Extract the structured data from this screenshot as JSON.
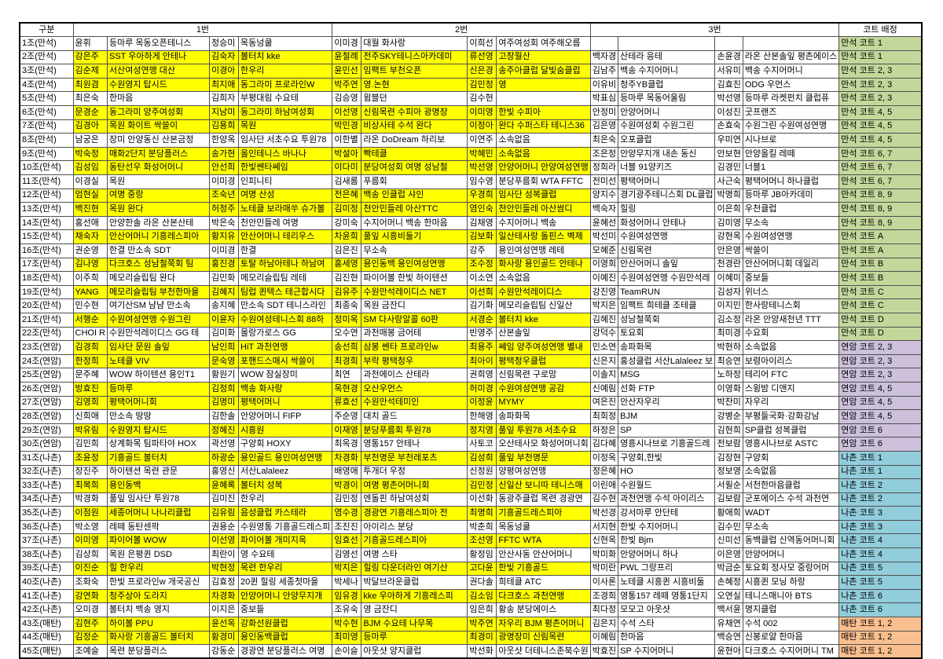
{
  "table": {
    "headers": {
      "group": "구분",
      "round1": "1번",
      "round2": "2번",
      "round3": "3번",
      "court": "코트 배정"
    },
    "colors": {
      "highlight": "#FFFF00",
      "court": {
        "manseok": "#C4D79B",
        "yeonam": "#CCC0DA",
        "nachon": "#92CDDC",
        "maetan": "#FABF8F"
      }
    },
    "rows": [
      {
        "group": "1조(만석)",
        "hl": false,
        "zone": "manseok",
        "court": "만석 코트 1",
        "cells": [
          "윤휘",
          "등마루 목동오픈테니스",
          "정승미",
          "목동넝쿨",
          "이미경",
          "대월 화사랑",
          "이희선",
          "여주여성회 여주해오름",
          "",
          "",
          "",
          ""
        ]
      },
      {
        "group": "2조(만석)",
        "hl": true,
        "zone": "manseok",
        "court": "만석 코트 1",
        "cells": [
          "강은주",
          "SST 우아하게 안테나",
          "김숙자",
          "볼터치 kke",
          "윤철례",
          "전주SKY테니스아카데미",
          "류선영",
          "고창월산",
          "백자경",
          "산테라 응테",
          "손윤경",
          "라온 산본솔잎 평촌에이스"
        ]
      },
      {
        "group": "3조(만석)",
        "hl": true,
        "zone": "manseok",
        "court": "만석 코트 2, 3",
        "cells": [
          "김순제",
          "서산여성연맹 대산",
          "이경아",
          "한우리",
          "윤민선",
          "임팩트 부천오픈",
          "신은경",
          "송주아클럽 달빛숨클럽",
          "김남주",
          "백송 수지어머니",
          "서유미",
          "백송 수지어머니"
        ]
      },
      {
        "group": "4조(만석)",
        "hl": true,
        "zone": "manseok",
        "court": "만석 코트 2, 3",
        "cells": [
          "최원겸",
          "수원영지 탑시드",
          "최지애",
          "동그라미 프로라인W",
          "박주연",
          "영.논현",
          "김민정",
          "영",
          "이유비",
          "청주YB클럽",
          "김효진",
          "ODG 우먼스"
        ]
      },
      {
        "group": "5조(만석)",
        "hl": false,
        "zone": "manseok",
        "court": "만석 코트 2, 3",
        "cells": [
          "최은숙",
          "한마음",
          "김희자",
          "부평대림 수요테",
          "김승영",
          "윔블던",
          "김수현",
          "",
          "박표심",
          "등마루 목동어울림",
          "박선영",
          "등마루 라켓펀치 클럽퓨"
        ]
      },
      {
        "group": "6조(만석)",
        "hl": true,
        "zone": "manseok",
        "court": "만석 코트 4, 5",
        "cells": [
          "문경순",
          "동그라미 양주여성회",
          "지남미",
          "동그라미 하남여성회",
          "이선영",
          "신림목련 수피아 광명장",
          "이미영",
          "한빛 수피아",
          "안정미",
          "안양어머니",
          "이성진",
          "굿프랜즈"
        ]
      },
      {
        "group": "7조(만석)",
        "hl": true,
        "zone": "manseok",
        "court": "만석 코트 4, 5",
        "cells": [
          "김경아",
          "목원 화이트 싹쓸이",
          "김용희",
          "목원",
          "박민경",
          "비상사테 수석 완다",
          "이정아",
          "완다 수퍼스타 테니스36",
          "김은영",
          "수원여성회 수원그린",
          "손효숙",
          "수원그린 수원여성연맹"
        ]
      },
      {
        "group": "8조(만석)",
        "hl": false,
        "zone": "manseok",
        "court": "만석 코트 4, 5",
        "cells": [
          "남궁은",
          "장미 안양동신 산본금정",
          "한양옥",
          "임사단 서초수요 투원78",
          "이한별",
          "라온 DoDream 하리보",
          "이연주",
          "소속없음",
          "최은숙",
          "오포클럽",
          "우미연",
          "시나브로"
        ]
      },
      {
        "group": "9조(만석)",
        "hl": true,
        "zone": "manseok",
        "court": "만석 코트 6, 7",
        "cells": [
          "박숙정",
          "매화2단지 분당플러스",
          "송가현",
          "올인테니스 바나나",
          "박설아",
          "빡테클",
          "박혜민",
          "소속없음",
          "조은정",
          "안양무지개 내손 동신",
          "안보현",
          "안양올킬 레떼"
        ]
      },
      {
        "group": "10조(만석)",
        "hl": true,
        "zone": "manseok",
        "court": "만석 코트 6, 7",
        "cells": [
          "김성임",
          "동탄선우 화성어머니",
          "안선희",
          "한빛쎈타쎄임",
          "이다미",
          "분당여성회 여명 성남철",
          "박선영",
          "안양어머니 안양여성연맹",
          "정희라",
          "너블 91양키즈",
          "김경민",
          "너블1"
        ]
      },
      {
        "group": "11조(만석)",
        "hl": false,
        "zone": "manseok",
        "court": "만석 코트 6, 7",
        "cells": [
          "이경실",
          "목원",
          "이미경",
          "인피니티",
          "김새롬",
          "푸름회",
          "임수영",
          "분당푸름회 WTA FFTC",
          "전미선",
          "평택어머니",
          "사근숙",
          "평택어머니 하나클럽"
        ]
      },
      {
        "group": "12조(만석)",
        "hl": true,
        "zone": "manseok",
        "court": "만석 코트 8, 9",
        "cells": [
          "엄현실",
          "여명 중랑",
          "조숙년",
          "여명 산성",
          "전은혜",
          "백송 인클럽 샤인",
          "우경희",
          "임사단 성복클럽",
          "양지수",
          "경기광주테니스회 DL클럽",
          "박명희",
          "등마루 JB아카데미"
        ]
      },
      {
        "group": "13조(만석)",
        "hl": true,
        "zone": "manseok",
        "court": "만석 코트 8, 9",
        "cells": [
          "백진현",
          "목원 완다",
          "허정주",
          "노테클 보라매쑤 슈가볼",
          "김미정",
          "천안민들레 아산TTC",
          "염인숙",
          "천안민들레 아산쌈디",
          "백숙자",
          "힐링",
          "이은희",
          "우천클럽"
        ]
      },
      {
        "group": "14조(만석)",
        "hl": false,
        "zone": "manseok",
        "court": "만석 코트 8, 9",
        "cells": [
          "홍선애",
          "안양한솔 라온 산본산테",
          "박은숙",
          "천안민들레 여명",
          "강미숙",
          "수지어머니 백송 한마음",
          "김채영",
          "수지어머니 백송",
          "윤혜선",
          "화성어머니 안테나",
          "김미영",
          "무소속"
        ]
      },
      {
        "group": "15조(만석)",
        "hl": true,
        "zone": "manseok",
        "court": "만석 코트 A",
        "cells": [
          "채숙자",
          "안산어머니 기흥레스피아",
          "황지유",
          "안산어머니 테리우스",
          "차윤희",
          "풀잎 시흥비둘기",
          "김보화",
          "일산테사랑 돌핀스 벽제",
          "박선미",
          "수원여성연맹",
          "강현옥",
          "수원여성연맹"
        ]
      },
      {
        "group": "16조(만석)",
        "hl": false,
        "zone": "manseok",
        "court": "만석 코트 A",
        "cells": [
          "권순영",
          "한결 만소속 SDT",
          "이미경",
          "한결",
          "김은진",
          "무소속",
          "강주",
          "용인여성연맹 레테",
          "모혜준",
          "신림목련",
          "안은영",
          "싹쓸이"
        ]
      },
      {
        "group": "17조(만석)",
        "hl": true,
        "zone": "manseok",
        "court": "만석 코트 B",
        "cells": [
          "김나영",
          "다크호스 성남철쭉회 팀",
          "홍진경",
          "토탈 하남아테나 하남여",
          "홍세영",
          "용인동백 용인여성연맹",
          "조수정",
          "화사랑 용인골드 안테나",
          "이영희",
          "안산어머니 솔잎",
          "천경란",
          "안산어머니회 데일리"
        ]
      },
      {
        "group": "18조(만석)",
        "hl": false,
        "zone": "manseok",
        "court": "만석 코트 B",
        "cells": [
          "이주희",
          "메모리슬립팀 완다",
          "김민화",
          "메모리슬립팀 레테",
          "김진현",
          "파이어볼 한빛 하이텐션",
          "이소연",
          "소속없음",
          "이예진",
          "수원여성연맹 수원만석레",
          "이혜미",
          "중보들"
        ]
      },
      {
        "group": "19조(만석)",
        "hl": true,
        "zone": "manseok",
        "court": "만석 코트 C",
        "cells": [
          "YANG",
          "메모리슬립팀 부천한마을",
          "김혜지",
          "팀럽 퀸텍스 테근합시다",
          "김유주",
          "수원만석레이디스 NET",
          "이선희",
          "수원만석레이디스",
          "강진영",
          "TeamRUN",
          "김성자",
          "위너스"
        ]
      },
      {
        "group": "20조(만석)",
        "hl": false,
        "zone": "manseok",
        "court": "만석 코트 C",
        "cells": [
          "민수현",
          "여기산SM 냠냠 만소속",
          "송지혜",
          "만소속 SDT 테니스라인",
          "최종숙",
          "목원 금잔디",
          "김기화",
          "메모리슬립팀 신일산",
          "박지은",
          "임팩트 희테클 조테클",
          "이지민",
          "한사랑테니스회"
        ]
      },
      {
        "group": "21조(만석)",
        "hl": true,
        "zone": "manseok",
        "court": "만석 코트 D",
        "cells": [
          "서행순",
          "수원여성연맹 수원그린",
          "이윤자",
          "수원여성테니스회 88하",
          "정미옥",
          "SM 다사랑알콜 60판",
          "서경순",
          "볼터치 kke",
          "김혜진",
          "성남철쭉회",
          "김소정",
          "라온 안양새천년 TTT"
        ]
      },
      {
        "group": "22조(만석)",
        "hl": false,
        "zone": "manseok",
        "court": "만석 코트 D",
        "cells": [
          "CHOI R",
          "수원만석레이디스 GG 테",
          "김미화",
          "몰랑가로스 GG",
          "오수연",
          "과천매봉 금어테",
          "빈영주",
          "산본솔잎",
          "강덕수",
          "토요회",
          "최미경",
          "수요회"
        ]
      },
      {
        "group": "23조(연암)",
        "hl": true,
        "zone": "yeonam",
        "court": "연암 코트 2, 3",
        "cells": [
          "김경희",
          "임사단 문원 솔잎",
          "남인희",
          "HiT 과천연맹",
          "송선희",
          "삼봉 쎈타 프로라인w",
          "최용주",
          "쎄임 양주여성연맹 별내",
          "민소연",
          "송파화목",
          "박현하",
          "소속없음"
        ]
      },
      {
        "group": "24조(연암)",
        "hl": true,
        "zone": "yeonam",
        "court": "연암 코트 2, 3",
        "cells": [
          "한정희",
          "노테클 VIV",
          "문숙영",
          "포핸드스매시 싹쓸이",
          "최경희",
          "부락 평택청우",
          "최아이",
          "평택청우클럽",
          "신은지",
          "홍성클럽 서산Lalaleez 보",
          "최승연",
          "보령아이리스"
        ]
      },
      {
        "group": "25조(연암)",
        "hl": false,
        "zone": "yeonam",
        "court": "연암 코트 2, 3",
        "cells": [
          "문주혜",
          "WOW 하이텐션 용인T1",
          "황원기",
          "WOW 잠실장미",
          "최연",
          "과천에이스 산테라",
          "권희영",
          "신림목련 구로맘",
          "이솔지",
          "MSG",
          "노하정",
          "테리어 FTC"
        ]
      },
      {
        "group": "26조(연암)",
        "hl": true,
        "zone": "yeonam",
        "court": "연암 코트 4, 5",
        "cells": [
          "방효진",
          "등마루",
          "김정희",
          "백송 화사랑",
          "옥현경",
          "오산우먼스",
          "허미경",
          "수원여성연맹 공감",
          "신예림",
          "선화 FTP",
          "이영화",
          "스윙밤 디앤지"
        ]
      },
      {
        "group": "27조(연암)",
        "hl": true,
        "zone": "yeonam",
        "court": "연암 코트 4, 5",
        "cells": [
          "김영희",
          "평택어머니회",
          "김명미",
          "평택어머니",
          "류효선",
          "수원만석테미인",
          "이정윤",
          "MYMY",
          "여은진",
          "안산자우리",
          "박찬미",
          "자우리"
        ]
      },
      {
        "group": "28조(연암)",
        "hl": false,
        "zone": "yeonam",
        "court": "연암 코트 4, 5",
        "cells": [
          "신희애",
          "만소속 땅땅",
          "김한솔",
          "안양어머니 FIFP",
          "주순영",
          "대치 골드",
          "한해영",
          "송파화목",
          "최희정",
          "BJM",
          "강병순",
          "부평들국화·강화강남"
        ]
      },
      {
        "group": "29조(연암)",
        "hl": true,
        "zone": "yeonam",
        "court": "연암 코트 6",
        "cells": [
          "박유림",
          "수원영지 탑시드",
          "정혜진",
          "시흥원",
          "이재영",
          "분당푸름회 투원78",
          "정지영",
          "풀잎 투원78 서초수요",
          "하정은",
          "SP",
          "김현희",
          "SP클럽 성복클럽"
        ]
      },
      {
        "group": "30조(연암)",
        "hl": false,
        "zone": "yeonam",
        "court": "연암 코트 6",
        "cells": [
          "김민희",
          "상계화목 팀파타야 HOX",
          "곽선영",
          "구양회 HOXY",
          "최옥경",
          "영통157 안테나",
          "사토코",
          "오산테사모 화성어머니회",
          "김다혜",
          "영흥시나브로 기흥골드레",
          "전보람",
          "영흥시나브로 ASTC"
        ]
      },
      {
        "group": "31조(나촌)",
        "hl": true,
        "zone": "nachon",
        "court": "나촌 코트 1",
        "cells": [
          "조윤정",
          "기흥골드 볼터치",
          "하광순",
          "용인골드 용인여성연맹",
          "차경화",
          "부천명문 부천레포츠",
          "김성희",
          "풀잎 부천명문",
          "이정옥",
          "구양회,한빛",
          "김장현",
          "구양회"
        ]
      },
      {
        "group": "32조(나촌)",
        "hl": false,
        "zone": "nachon",
        "court": "나촌 코트 1",
        "cells": [
          "장진주",
          "하이텐션 목련 관문",
          "홍영신",
          "서산Lalaleez",
          "배영애",
          "투개더 우정",
          "신정원",
          "양평여성연맹",
          "정은혜",
          "HO",
          "정보영",
          "소속없음"
        ]
      },
      {
        "group": "33조(나촌)",
        "hl": true,
        "zone": "nachon",
        "court": "나촌 코트 2",
        "cells": [
          "최복희",
          "용인동백",
          "윤혜록",
          "볼터치 성복",
          "박경이",
          "여명 평촌어머니회",
          "김민정",
          "신일산 보니따 테니스매",
          "이린애",
          "수원월드",
          "서필순",
          "서천한마음클럽"
        ]
      },
      {
        "group": "34조(나촌)",
        "hl": false,
        "zone": "nachon",
        "court": "나촌 코트 2",
        "cells": [
          "박경화",
          "풀잎 임사단 투원78",
          "김미진",
          "한우리",
          "김민정",
          "엔돌핀 하남여성회",
          "이선화",
          "동광주클럽 목련 경광연",
          "김수현",
          "과천연맹 수석 아이리스",
          "김보람",
          "군포에이스 수석 과천연"
        ]
      },
      {
        "group": "35조(나촌)",
        "hl": true,
        "zone": "nachon",
        "court": "나촌 코트 3",
        "cells": [
          "이점원",
          "세종어머니 나나리클럽",
          "김유림",
          "음성클럽 카스테라",
          "염수경",
          "경광연 기흥레스피아 전",
          "최명희",
          "기흥골드레스피아",
          "박선경",
          "강서마루 안단테",
          "황애희",
          "WADT"
        ]
      },
      {
        "group": "36조(나촌)",
        "hl": false,
        "zone": "nachon",
        "court": "나촌 코트 3",
        "cells": [
          "박소영",
          "레떼 동탄센팍",
          "권용순",
          "수원영통 기흥골드레스피",
          "조진진",
          "아이리스 분당",
          "박춘희",
          "목동넝쿨",
          "서지현",
          "한빛 수지어머니",
          "김수민",
          "무소속"
        ]
      },
      {
        "group": "37조(나촌)",
        "hl": true,
        "zone": "nachon",
        "court": "나촌 코트 4",
        "cells": [
          "이미영",
          "파이어볼 WOW",
          "이선영",
          "파이어볼 개미지옥",
          "임효선",
          "기흥골드레스피아",
          "조선영",
          "FFTC WTA",
          "신현옥",
          "한빛 Bjm",
          "신미선",
          "동백클럽 신역동어머니회"
        ]
      },
      {
        "group": "38조(나촌)",
        "hl": false,
        "zone": "nachon",
        "court": "나촌 코트 4",
        "cells": [
          "김상희",
          "목원 은평퀸 DSD",
          "최란이",
          "영 수요테",
          "김영선",
          "여명 스타",
          "황정임",
          "안산사동 안산어머니",
          "박미화",
          "안양어머니 하나",
          "이은영",
          "안양어머니"
        ]
      },
      {
        "group": "39조(나촌)",
        "hl": true,
        "zone": "nachon",
        "court": "나촌 코트 5",
        "cells": [
          "이진순",
          "힐 한우리",
          "박현정",
          "목련 한우리",
          "박지은",
          "힐링 다운더라인 여기산",
          "고다윤",
          "한빛 기흥골드",
          "박미란",
          "PWL 그랑프리",
          "박금순",
          "토요회 정사모 중랑어머"
        ]
      },
      {
        "group": "40조(나촌)",
        "hl": false,
        "zone": "nachon",
        "court": "나촌 코트 5",
        "cells": [
          "조화숙",
          "한빛 프로라인w 개국공신",
          "김효정",
          "20퀸 힐링 세종첫마을",
          "박세나",
          "박달브라운클럽",
          "권다솔",
          "희테클 ATC",
          "이사론",
          "노테클 시흥퀸 시흥비둘",
          "손혜정",
          "시흥퀸 모닝 하랑"
        ]
      },
      {
        "group": "41조(나촌)",
        "hl": true,
        "zone": "nachon",
        "court": "나촌 코트 6",
        "cells": [
          "강연화",
          "청주상아 도라지",
          "차경화",
          "안양어머니 안양무지개",
          "임유경",
          "kke 우아하게 기흥레스피",
          "김소임",
          "다크호스 과천연맹",
          "조경희",
          "영통157 레떼 영통1단지",
          "오연실",
          "테니스매니아 BTS"
        ]
      },
      {
        "group": "42조(나촌)",
        "hl": false,
        "zone": "nachon",
        "court": "나촌 코트 6",
        "cells": [
          "오미경",
          "볼터치 백송 영지",
          "이지은",
          "중보들",
          "조유숙",
          "영 금잔디",
          "임은희",
          "황송 분당에이스",
          "최다정",
          "모모고 아웃샷",
          "백서윤",
          "명지클럽"
        ]
      },
      {
        "group": "43조(매탄)",
        "hl": true,
        "zone": "maetan",
        "court": "매탄 코트 1, 2",
        "cells": [
          "김현주",
          "하이볼 PPU",
          "윤선옥",
          "강화선원클럽",
          "박수현",
          "BJM 수요테 나무목",
          "박주연",
          "자우리 BJM 평촌어머니",
          "김은지",
          "수석 스타",
          "유채연",
          "수석 002"
        ]
      },
      {
        "group": "44조(매탄)",
        "hl": true,
        "zone": "maetan",
        "court": "매탄 코트 1, 2",
        "cells": [
          "김정순",
          "화사랑 기흥골드 볼터치",
          "황경미",
          "용인동백클럽",
          "최미영",
          "등마루",
          "최경미",
          "광명장미 신림목련",
          "이혜림",
          "한마음",
          "백승연",
          "신봉로얄 한마음"
        ]
      },
      {
        "group": "45조(매탄)",
        "hl": false,
        "zone": "maetan",
        "court": "매탄 코트 1, 2",
        "cells": [
          "조예슬",
          "목련 분당플러스",
          "강동순",
          "경광연 분당플러스 여명",
          "손이슬",
          "아웃샷 양지클럽",
          "박선화",
          "아웃샷 더테니스존북수원",
          "박효진",
          "SP 수지어머니",
          "윤현아",
          "다크호스 수지어머니 TM"
        ]
      }
    ]
  }
}
